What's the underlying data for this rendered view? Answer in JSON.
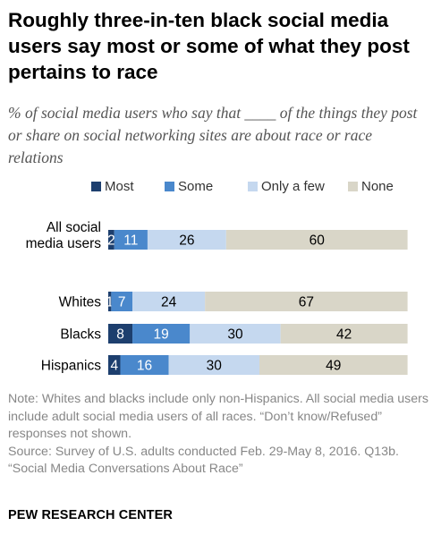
{
  "title": "Roughly three-in-ten black social media users say most or some of what they post pertains to race",
  "subtitle": "% of social media users who say that ____ of the things they post or share on social networking sites are about race or race relations",
  "colors": {
    "most": "#1d3f6e",
    "some": "#4a88cc",
    "only_a_few": "#c5d8ef",
    "none": "#d9d6c8"
  },
  "chart_data": {
    "type": "bar",
    "orientation": "horizontal",
    "stacked": true,
    "xlim": [
      0,
      100
    ],
    "legend_position": "top",
    "categories": [
      "All social media users",
      "Whites",
      "Blacks",
      "Hispanics"
    ],
    "series": [
      {
        "name": "Most",
        "color": "#1d3f6e",
        "values": [
          2,
          1,
          8,
          4
        ]
      },
      {
        "name": "Some",
        "color": "#4a88cc",
        "values": [
          11,
          7,
          19,
          16
        ]
      },
      {
        "name": "Only a few",
        "color": "#c5d8ef",
        "values": [
          26,
          24,
          30,
          30
        ]
      },
      {
        "name": "None",
        "color": "#d9d6c8",
        "values": [
          60,
          67,
          42,
          49
        ]
      }
    ]
  },
  "notes": [
    "Note: Whites and blacks include only non-Hispanics. All social media users include adult social media users of all races. “Don’t know/Refused” responses not shown.",
    "Source: Survey of U.S. adults conducted Feb. 29-May 8, 2016. Q13b.",
    "“Social Media Conversations About Race”"
  ],
  "brand": "PEW RESEARCH CENTER"
}
